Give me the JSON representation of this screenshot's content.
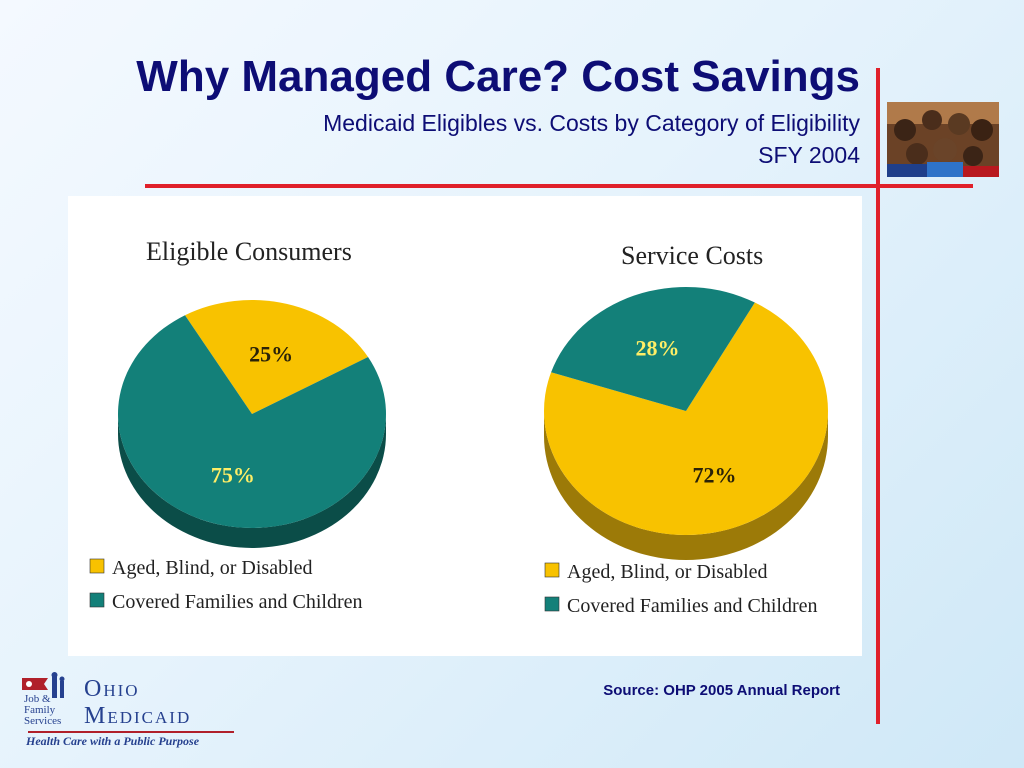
{
  "slide": {
    "title": "Why Managed Care? Cost Savings",
    "subtitle": "Medicaid Eligibles vs. Costs by Category of Eligibility",
    "year": "SFY 2004",
    "source": "Source: OHP 2005 Annual Report"
  },
  "logo": {
    "agency": "Job & Family Services",
    "wordmark_line1": "Ohio",
    "wordmark_line2": "Medicaid",
    "tagline": "Health Care with a Public Purpose"
  },
  "colors": {
    "title": "#0d0d75",
    "accent_line": "#e0202a",
    "aged_blind_disabled": "#f8c200",
    "aged_blind_disabled_side": "#9c7a08",
    "covered_families": "#138079",
    "covered_families_side": "#0b4d48"
  },
  "chart_data": [
    {
      "type": "pie",
      "title": "Eligible Consumers",
      "categories": [
        "Aged, Blind, or Disabled",
        "Covered Families and Children"
      ],
      "values": [
        25,
        75
      ],
      "value_labels": [
        "25%",
        "75%"
      ],
      "legend": "bottom"
    },
    {
      "type": "pie",
      "title": "Service Costs",
      "categories": [
        "Aged, Blind, or Disabled",
        "Covered Families and Children"
      ],
      "values": [
        72,
        28
      ],
      "value_labels": [
        "72%",
        "28%"
      ],
      "legend": "bottom"
    }
  ]
}
